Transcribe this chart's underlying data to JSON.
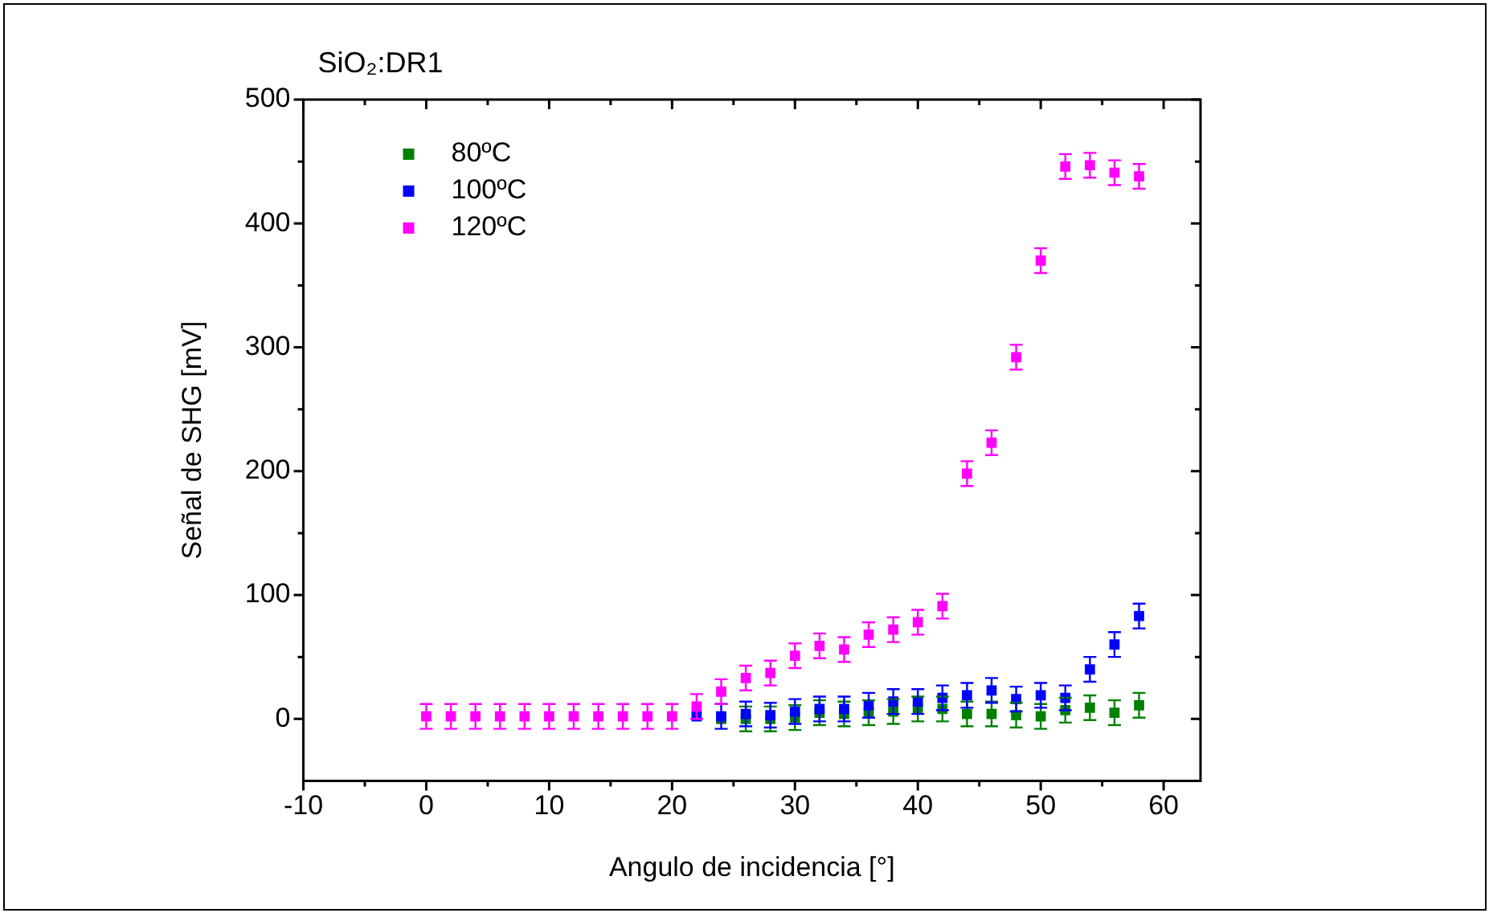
{
  "chart_data": {
    "type": "scatter",
    "title": "SiO₂:DR1",
    "xlabel": "Angulo de incidencia [°]",
    "ylabel": "Señal de SHG [mV]",
    "x": [
      0,
      2,
      4,
      6,
      8,
      10,
      12,
      14,
      16,
      18,
      20,
      22,
      24,
      26,
      28,
      30,
      32,
      34,
      36,
      38,
      40,
      42,
      44,
      46,
      48,
      50,
      52,
      54,
      56,
      58
    ],
    "series": [
      {
        "name": "80ºC",
        "color": "#008000",
        "values": [
          null,
          null,
          null,
          null,
          null,
          null,
          null,
          null,
          null,
          null,
          null,
          null,
          0,
          0,
          0,
          1,
          5,
          4,
          5,
          6,
          8,
          8,
          4,
          4,
          3,
          2,
          7,
          9,
          5,
          11
        ],
        "errors": [
          null,
          null,
          null,
          null,
          null,
          null,
          null,
          null,
          null,
          null,
          null,
          null,
          null,
          10,
          10,
          10,
          10,
          10,
          10,
          10,
          10,
          10,
          10,
          10,
          10,
          10,
          10,
          10,
          10,
          10
        ]
      },
      {
        "name": "100ºC",
        "color": "#0000ff",
        "values": [
          null,
          null,
          null,
          null,
          null,
          null,
          null,
          null,
          null,
          null,
          null,
          2,
          2,
          4,
          3,
          6,
          8,
          8,
          11,
          14,
          14,
          17,
          19,
          23,
          16,
          19,
          17,
          40,
          60,
          83
        ],
        "errors": [
          null,
          null,
          null,
          null,
          null,
          null,
          null,
          null,
          null,
          null,
          null,
          null,
          10,
          10,
          10,
          10,
          10,
          10,
          10,
          10,
          10,
          10,
          10,
          10,
          10,
          10,
          10,
          10,
          10,
          10
        ]
      },
      {
        "name": "120ºC",
        "color": "#ff00ff",
        "values": [
          2,
          2,
          2,
          2,
          2,
          2,
          2,
          2,
          2,
          2,
          2,
          10,
          22,
          33,
          37,
          51,
          59,
          56,
          68,
          72,
          78,
          91,
          198,
          223,
          292,
          370,
          446,
          447,
          441,
          438
        ],
        "errors": [
          10,
          10,
          10,
          10,
          10,
          10,
          10,
          10,
          10,
          10,
          10,
          10,
          10,
          10,
          10,
          10,
          10,
          10,
          10,
          10,
          10,
          10,
          10,
          10,
          10,
          10,
          10,
          10,
          10,
          10
        ]
      }
    ],
    "xlim": [
      -10,
      63
    ],
    "ylim": [
      -50,
      500
    ],
    "xticks": [
      -10,
      {
        "value": -5,
        "label": null
      },
      0,
      {
        "value": 5,
        "label": null
      },
      10,
      {
        "value": 15,
        "label": null
      },
      20,
      {
        "value": 25,
        "label": null
      },
      30,
      {
        "value": 35,
        "label": null
      },
      40,
      {
        "value": 45,
        "label": null
      },
      50,
      {
        "value": 55,
        "label": null
      },
      60
    ],
    "yticks": [
      0,
      {
        "value": 50,
        "label": null
      },
      100,
      {
        "value": 150,
        "label": null
      },
      200,
      {
        "value": 250,
        "label": null
      },
      300,
      {
        "value": 350,
        "label": null
      },
      400,
      {
        "value": 450,
        "label": null
      },
      500
    ],
    "marker": "square",
    "legend": "top left",
    "grid": false
  }
}
